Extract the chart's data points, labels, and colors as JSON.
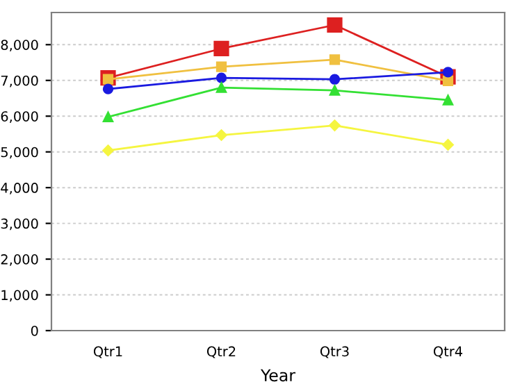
{
  "chart_data": {
    "type": "line",
    "xlabel": "Year",
    "categories": [
      "Qtr1",
      "Qtr2",
      "Qtr3",
      "Qtr4"
    ],
    "series": [
      {
        "color": "#dd2020",
        "marker": "square",
        "values": [
          7070,
          7890,
          8550,
          7100
        ]
      },
      {
        "color": "#f0c040",
        "marker": "square",
        "values": [
          7030,
          7380,
          7580,
          6990
        ]
      },
      {
        "color": "#1a1ae0",
        "marker": "circle",
        "values": [
          6760,
          7070,
          7030,
          7230
        ]
      },
      {
        "color": "#33e033",
        "marker": "triangle",
        "values": [
          5980,
          6800,
          6720,
          6450
        ]
      },
      {
        "color": "#f5f540",
        "marker": "diamond",
        "values": [
          5040,
          5470,
          5740,
          5200
        ]
      }
    ],
    "ylim": [
      0,
      8900
    ],
    "yticks": [
      {
        "value": 0,
        "label": "0"
      },
      {
        "value": 1000,
        "label": "1,000"
      },
      {
        "value": 2000,
        "label": "2,000"
      },
      {
        "value": 3000,
        "label": "3,000"
      },
      {
        "value": 4000,
        "label": "4,000"
      },
      {
        "value": 5000,
        "label": "5,000"
      },
      {
        "value": 6000,
        "label": "6,000"
      },
      {
        "value": 7000,
        "label": "7,000"
      },
      {
        "value": 8000,
        "label": "8,000"
      }
    ],
    "grid": "y"
  }
}
